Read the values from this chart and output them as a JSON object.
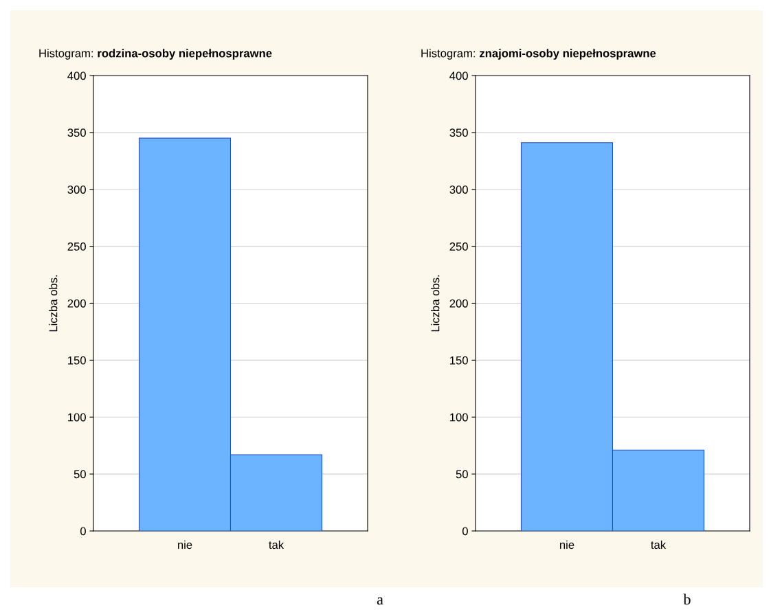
{
  "chart_data": [
    {
      "type": "bar",
      "title": "Histogram: rodzina-osoby niepełnosprawne",
      "ylabel": "Liczba obs.",
      "categories": [
        "nie",
        "tak"
      ],
      "values": [
        345,
        67
      ],
      "color": "#6cb4ff",
      "ylim": [
        0,
        400
      ],
      "yticks": [
        0,
        50,
        100,
        150,
        200,
        250,
        300,
        350,
        400
      ],
      "grid": "y",
      "annotations": [
        "a"
      ]
    },
    {
      "type": "bar",
      "title": "Histogram: znajomi-osoby niepełnosprawne",
      "ylabel": "Liczba obs.",
      "categories": [
        "nie",
        "tak"
      ],
      "values": [
        341,
        71
      ],
      "color": "#6cb4ff",
      "ylim": [
        0,
        400
      ],
      "yticks": [
        0,
        50,
        100,
        150,
        200,
        250,
        300,
        350,
        400
      ],
      "grid": "y",
      "annotations": [
        "b"
      ]
    }
  ]
}
